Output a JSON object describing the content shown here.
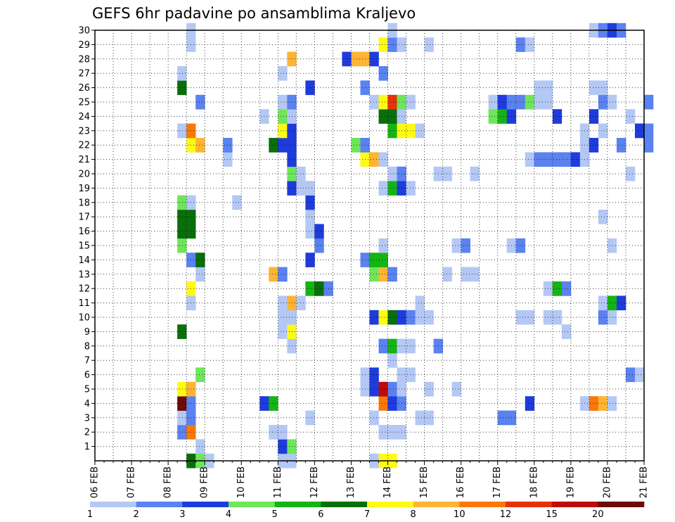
{
  "chart_data": {
    "type": "heatmap",
    "title": "GEFS 6hr padavine po ansamblima Kraljevo",
    "xlabel": "",
    "ylabel": "",
    "x_tick_labels": [
      "06 FEB",
      "07 FEB",
      "08 FEB",
      "09 FEB",
      "10 FEB",
      "11 FEB",
      "12 FEB",
      "13 FEB",
      "14 FEB",
      "15 FEB",
      "16 FEB",
      "17 FEB",
      "18 FEB",
      "19 FEB",
      "20 FEB",
      "21 FEB"
    ],
    "y_tick_labels": [
      "1",
      "2",
      "3",
      "4",
      "5",
      "6",
      "7",
      "8",
      "9",
      "10",
      "11",
      "12",
      "13",
      "14",
      "15",
      "16",
      "17",
      "18",
      "19",
      "20",
      "21",
      "22",
      "23",
      "24",
      "25",
      "26",
      "27",
      "28",
      "29",
      "30"
    ],
    "y_range": [
      0,
      30
    ],
    "time_step_hours": 6,
    "grid": "dotted",
    "legend": {
      "position": "bottom",
      "labels": [
        "1",
        "2",
        "3",
        "4",
        "5",
        "6",
        "7",
        "8",
        "10",
        "12",
        "15",
        "20"
      ],
      "colors": [
        "#B4C8F5",
        "#5A82F0",
        "#1E3CDC",
        "#6EE65A",
        "#14B414",
        "#0A6E0A",
        "#FFFA14",
        "#FFB432",
        "#FA780A",
        "#E6320A",
        "#BE0A0A",
        "#6E0A0A"
      ]
    },
    "cells": [
      [
        8.5,
        0,
        6
      ],
      [
        8.75,
        0,
        4
      ],
      [
        9,
        0,
        1
      ],
      [
        11,
        0,
        1
      ],
      [
        11.25,
        0,
        1
      ],
      [
        13.5,
        0,
        1
      ],
      [
        13.75,
        0,
        7
      ],
      [
        14,
        0,
        7
      ],
      [
        8.75,
        1,
        1
      ],
      [
        11,
        1,
        3
      ],
      [
        11.25,
        1,
        4
      ],
      [
        8.25,
        2,
        2
      ],
      [
        8.5,
        2,
        9
      ],
      [
        10.75,
        2,
        1
      ],
      [
        11,
        2,
        1
      ],
      [
        13.75,
        2,
        1
      ],
      [
        14,
        2,
        1
      ],
      [
        14.25,
        2,
        1
      ],
      [
        8.25,
        3,
        1
      ],
      [
        8.5,
        3,
        2
      ],
      [
        11.75,
        3,
        1
      ],
      [
        13.5,
        3,
        1
      ],
      [
        14.75,
        3,
        1
      ],
      [
        15,
        3,
        1
      ],
      [
        17,
        3,
        2
      ],
      [
        17.25,
        3,
        2
      ],
      [
        8.25,
        4,
        12
      ],
      [
        8.5,
        4,
        2
      ],
      [
        10.5,
        4,
        3
      ],
      [
        10.75,
        4,
        5
      ],
      [
        13.75,
        4,
        9
      ],
      [
        14,
        4,
        3
      ],
      [
        14.25,
        4,
        2
      ],
      [
        17.75,
        4,
        3
      ],
      [
        19.25,
        4,
        1
      ],
      [
        19.5,
        4,
        9
      ],
      [
        19.75,
        4,
        8
      ],
      [
        20,
        4,
        1
      ],
      [
        8.25,
        5,
        7
      ],
      [
        8.5,
        5,
        8
      ],
      [
        13.25,
        5,
        1
      ],
      [
        13.5,
        5,
        3
      ],
      [
        13.75,
        5,
        11
      ],
      [
        14,
        5,
        2
      ],
      [
        14.25,
        5,
        1
      ],
      [
        15,
        5,
        1
      ],
      [
        15.75,
        5,
        1
      ],
      [
        8.75,
        6,
        4
      ],
      [
        13.25,
        6,
        1
      ],
      [
        13.5,
        6,
        3
      ],
      [
        14.25,
        6,
        1
      ],
      [
        14.5,
        6,
        1
      ],
      [
        20.5,
        6,
        2
      ],
      [
        20.75,
        6,
        1
      ],
      [
        14,
        7,
        1
      ],
      [
        11.25,
        8,
        1
      ],
      [
        13.75,
        8,
        2
      ],
      [
        14,
        8,
        5
      ],
      [
        14.25,
        8,
        1
      ],
      [
        14.5,
        8,
        1
      ],
      [
        15.25,
        8,
        2
      ],
      [
        8.25,
        9,
        6
      ],
      [
        11,
        9,
        1
      ],
      [
        11.25,
        9,
        7
      ],
      [
        18.75,
        9,
        1
      ],
      [
        11,
        10,
        1
      ],
      [
        11.25,
        10,
        1
      ],
      [
        13.5,
        10,
        3
      ],
      [
        13.75,
        10,
        7
      ],
      [
        14,
        10,
        6
      ],
      [
        14.25,
        10,
        3
      ],
      [
        14.5,
        10,
        2
      ],
      [
        14.75,
        10,
        1
      ],
      [
        15,
        10,
        1
      ],
      [
        17.5,
        10,
        1
      ],
      [
        17.75,
        10,
        1
      ],
      [
        18.25,
        10,
        1
      ],
      [
        18.5,
        10,
        1
      ],
      [
        19.75,
        10,
        2
      ],
      [
        20,
        10,
        1
      ],
      [
        8.5,
        11,
        1
      ],
      [
        11,
        11,
        1
      ],
      [
        11.25,
        11,
        8
      ],
      [
        11.5,
        11,
        1
      ],
      [
        14.75,
        11,
        1
      ],
      [
        19.75,
        11,
        1
      ],
      [
        20,
        11,
        5
      ],
      [
        20.25,
        11,
        3
      ],
      [
        8.5,
        12,
        7
      ],
      [
        11.75,
        12,
        5
      ],
      [
        12,
        12,
        6
      ],
      [
        12.25,
        12,
        2
      ],
      [
        18.25,
        12,
        1
      ],
      [
        18.5,
        12,
        5
      ],
      [
        18.75,
        12,
        2
      ],
      [
        8.75,
        13,
        1
      ],
      [
        10.75,
        13,
        8
      ],
      [
        11,
        13,
        2
      ],
      [
        13.5,
        13,
        4
      ],
      [
        13.75,
        13,
        8
      ],
      [
        14,
        13,
        2
      ],
      [
        15.5,
        13,
        1
      ],
      [
        16,
        13,
        1
      ],
      [
        16.25,
        13,
        1
      ],
      [
        8.5,
        14,
        2
      ],
      [
        8.75,
        14,
        6
      ],
      [
        11.75,
        14,
        3
      ],
      [
        13.25,
        14,
        2
      ],
      [
        13.5,
        14,
        5
      ],
      [
        13.75,
        14,
        5
      ],
      [
        8.25,
        15,
        4
      ],
      [
        12,
        15,
        2
      ],
      [
        13.75,
        15,
        1
      ],
      [
        15.75,
        15,
        1
      ],
      [
        16,
        15,
        2
      ],
      [
        17.25,
        15,
        1
      ],
      [
        17.5,
        15,
        2
      ],
      [
        20,
        15,
        1
      ],
      [
        8.25,
        16,
        6
      ],
      [
        8.5,
        16,
        6
      ],
      [
        11.75,
        16,
        1
      ],
      [
        12,
        16,
        3
      ],
      [
        8.25,
        17,
        6
      ],
      [
        8.5,
        17,
        6
      ],
      [
        11.75,
        17,
        1
      ],
      [
        19.75,
        17,
        1
      ],
      [
        8.25,
        18,
        4
      ],
      [
        8.5,
        18,
        1
      ],
      [
        9.75,
        18,
        1
      ],
      [
        11.75,
        18,
        3
      ],
      [
        11.25,
        19,
        3
      ],
      [
        11.5,
        19,
        1
      ],
      [
        11.75,
        19,
        1
      ],
      [
        13.75,
        19,
        1
      ],
      [
        14,
        19,
        5
      ],
      [
        14.25,
        19,
        3
      ],
      [
        14.5,
        19,
        1
      ],
      [
        11.25,
        20,
        4
      ],
      [
        11.5,
        20,
        1
      ],
      [
        14,
        20,
        1
      ],
      [
        14.25,
        20,
        2
      ],
      [
        15.25,
        20,
        1
      ],
      [
        15.5,
        20,
        1
      ],
      [
        16.25,
        20,
        1
      ],
      [
        20.5,
        20,
        1
      ],
      [
        9.5,
        21,
        1
      ],
      [
        11.25,
        21,
        3
      ],
      [
        13.25,
        21,
        7
      ],
      [
        13.5,
        21,
        8
      ],
      [
        13.75,
        21,
        1
      ],
      [
        17.75,
        21,
        1
      ],
      [
        18,
        21,
        2
      ],
      [
        18.25,
        21,
        2
      ],
      [
        18.5,
        21,
        2
      ],
      [
        18.75,
        21,
        2
      ],
      [
        19,
        21,
        3
      ],
      [
        19.25,
        21,
        1
      ],
      [
        8.5,
        22,
        7
      ],
      [
        8.75,
        22,
        8
      ],
      [
        9.5,
        22,
        2
      ],
      [
        10.75,
        22,
        6
      ],
      [
        11,
        22,
        3
      ],
      [
        11.25,
        22,
        3
      ],
      [
        13,
        22,
        4
      ],
      [
        13.25,
        22,
        2
      ],
      [
        19.25,
        22,
        1
      ],
      [
        19.5,
        22,
        3
      ],
      [
        20.25,
        22,
        2
      ],
      [
        21,
        22,
        2
      ],
      [
        8.25,
        23,
        1
      ],
      [
        8.5,
        23,
        9
      ],
      [
        11,
        23,
        7
      ],
      [
        11.25,
        23,
        3
      ],
      [
        14,
        23,
        5
      ],
      [
        14.25,
        23,
        7
      ],
      [
        14.5,
        23,
        7
      ],
      [
        14.75,
        23,
        1
      ],
      [
        19.25,
        23,
        1
      ],
      [
        19.75,
        23,
        1
      ],
      [
        20.75,
        23,
        3
      ],
      [
        21,
        23,
        2
      ],
      [
        10.5,
        24,
        1
      ],
      [
        11,
        24,
        4
      ],
      [
        11.25,
        24,
        1
      ],
      [
        13.75,
        24,
        6
      ],
      [
        14,
        24,
        6
      ],
      [
        14.25,
        24,
        1
      ],
      [
        16.75,
        24,
        4
      ],
      [
        17,
        24,
        5
      ],
      [
        17.25,
        24,
        3
      ],
      [
        18.5,
        24,
        3
      ],
      [
        19.5,
        24,
        3
      ],
      [
        20.5,
        24,
        1
      ],
      [
        8.75,
        25,
        2
      ],
      [
        11,
        25,
        1
      ],
      [
        11.25,
        25,
        2
      ],
      [
        13.5,
        25,
        1
      ],
      [
        13.75,
        25,
        7
      ],
      [
        14,
        25,
        10
      ],
      [
        14.25,
        25,
        4
      ],
      [
        14.5,
        25,
        1
      ],
      [
        16.75,
        25,
        1
      ],
      [
        17,
        25,
        3
      ],
      [
        17.25,
        25,
        2
      ],
      [
        17.5,
        25,
        2
      ],
      [
        17.75,
        25,
        4
      ],
      [
        18,
        25,
        1
      ],
      [
        18.25,
        25,
        1
      ],
      [
        19.75,
        25,
        2
      ],
      [
        20,
        25,
        1
      ],
      [
        21,
        25,
        2
      ],
      [
        8.25,
        26,
        6
      ],
      [
        11.75,
        26,
        3
      ],
      [
        13.25,
        26,
        2
      ],
      [
        18,
        26,
        1
      ],
      [
        18.25,
        26,
        1
      ],
      [
        19.5,
        26,
        1
      ],
      [
        19.75,
        26,
        1
      ],
      [
        8.25,
        27,
        1
      ],
      [
        11,
        27,
        1
      ],
      [
        13.75,
        27,
        2
      ],
      [
        11.25,
        28,
        8
      ],
      [
        12.75,
        28,
        3
      ],
      [
        13,
        28,
        8
      ],
      [
        13.25,
        28,
        8
      ],
      [
        13.5,
        28,
        3
      ],
      [
        8.5,
        29,
        1
      ],
      [
        13.75,
        29,
        7
      ],
      [
        14,
        29,
        2
      ],
      [
        14.25,
        29,
        1
      ],
      [
        15,
        29,
        1
      ],
      [
        17.5,
        29,
        2
      ],
      [
        17.75,
        29,
        1
      ],
      [
        8.5,
        30,
        1
      ],
      [
        14,
        30,
        1
      ],
      [
        19.5,
        30,
        1
      ],
      [
        19.75,
        30,
        2
      ],
      [
        20,
        30,
        3
      ],
      [
        20.25,
        30,
        2
      ]
    ]
  }
}
